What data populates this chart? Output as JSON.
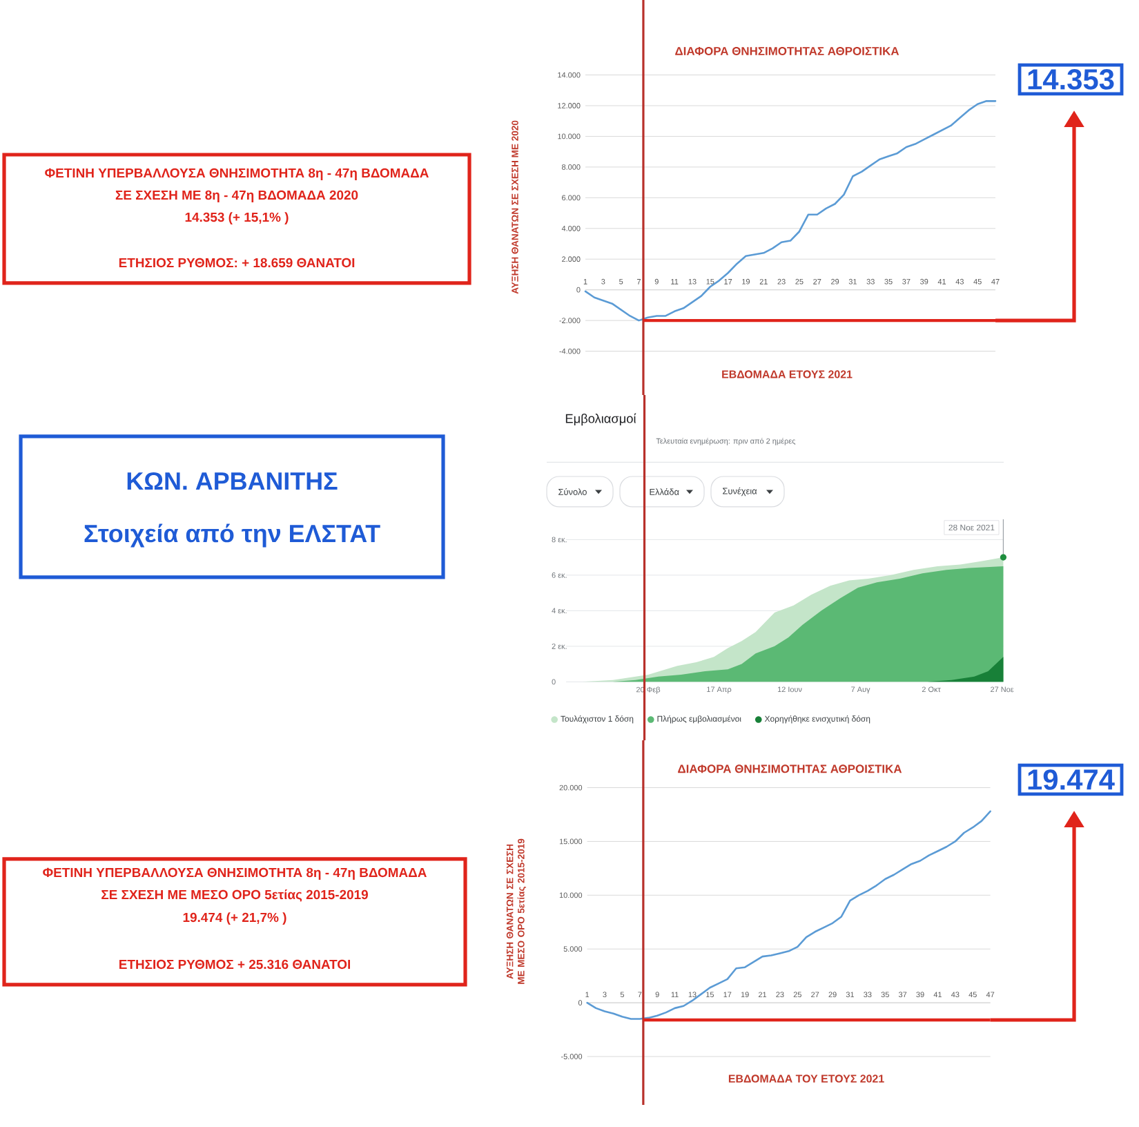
{
  "chart_data": [
    {
      "type": "other",
      "color": "#e0241b",
      "annotations": [
        "ΦΕΤΙΝΗ ΥΠΕΡΒΑΛΛΟΥΣΑ ΘΝΗΣΙΜΟΤΗΤΑ 8η - 47η ΒΔΟΜΑΔΑ",
        "ΣΕ ΣΧΕΣΗ ΜΕ 8η - 47η ΒΔΟΜΑΔΑ 2020",
        "14.353 (+ 15,1% )",
        "ΕΤΗΣΙΟΣ ΡΥΘΜΟΣ: + 18.659 ΘΑΝΑΤΟΙ"
      ]
    },
    {
      "type": "line",
      "title": "ΔΙΑΦΟΡΑ ΘΝΗΣΙΜΟΤΗΤΑΣ ΑΘΡΟΙΣΤΙΚΑ",
      "xlabel": "ΕΒΔΟΜΑΔΑ ΕΤΟΥΣ 2021",
      "ylabel": "ΑΥΞΗΣΗ ΘΑΝΑΤΩΝ ΣΕ ΣΧΕΣΗ ΜΕ 2020",
      "x": [
        1,
        2,
        3,
        4,
        5,
        6,
        7,
        8,
        9,
        10,
        11,
        12,
        13,
        14,
        15,
        16,
        17,
        18,
        19,
        20,
        21,
        22,
        23,
        24,
        25,
        26,
        27,
        28,
        29,
        30,
        31,
        32,
        33,
        34,
        35,
        36,
        37,
        38,
        39,
        40,
        41,
        42,
        43,
        44,
        45,
        46,
        47
      ],
      "values": [
        -100,
        -500,
        -700,
        -900,
        -1300,
        -1700,
        -2000,
        -1800,
        -1700,
        -1700,
        -1400,
        -1200,
        -800,
        -400,
        200,
        600,
        1100,
        1700,
        2200,
        2300,
        2400,
        2700,
        3100,
        3200,
        3800,
        4900,
        4900,
        5300,
        5600,
        6200,
        7400,
        7700,
        8100,
        8500,
        8700,
        8900,
        9300,
        9500,
        9800,
        10100,
        10400,
        10700,
        11200,
        11700,
        12100,
        12300,
        12300
      ],
      "color": "#5b9bd5",
      "xlim": [
        1,
        47
      ],
      "xticks": [
        1,
        3,
        5,
        7,
        9,
        11,
        13,
        15,
        17,
        19,
        21,
        23,
        25,
        27,
        29,
        31,
        33,
        35,
        37,
        39,
        41,
        43,
        45,
        47
      ],
      "ylim": [
        -4000,
        14000
      ],
      "yticks": [
        {
          "value": -4000,
          "label": "-4.000"
        },
        {
          "value": -2000,
          "label": "-2.000"
        },
        0,
        {
          "value": 2000,
          "label": "2.000"
        },
        {
          "value": 4000,
          "label": "4.000"
        },
        {
          "value": 6000,
          "label": "6.000"
        },
        {
          "value": 8000,
          "label": "8.000"
        },
        {
          "value": 10000,
          "label": "10.000"
        },
        {
          "value": 12000,
          "label": "12.000"
        },
        {
          "value": 14000,
          "label": "14.000"
        }
      ],
      "grid": "y",
      "ref_lines": [
        {
          "axis": "x",
          "value": 7.5,
          "color": "#b8312b"
        },
        {
          "axis": "y",
          "value": -2000,
          "color": "#e0241b"
        }
      ],
      "annotations": [
        "14.353"
      ]
    },
    {
      "type": "other",
      "color": "#1f5bd6",
      "annotations": [
        "ΚΩΝ. ΑΡΒΑΝΙΤΗΣ",
        "Στοιχεία από την ΕΛΣΤΑΤ"
      ]
    },
    {
      "type": "area",
      "title": "Εμβολιασμοί",
      "subtitle": "Τελευταία ενημέρωση: πριν από 2 ημέρες",
      "xlim": [
        "2020-12-17",
        "2021-11-28"
      ],
      "xticks": [
        {
          "value": "2021-02-20",
          "label": "20 Φεβ"
        },
        {
          "value": "2021-04-17",
          "label": "17 Απρ"
        },
        {
          "value": "2021-06-12",
          "label": "12 Ιουν"
        },
        {
          "value": "2021-08-07",
          "label": "7 Αυγ"
        },
        {
          "value": "2021-10-02",
          "label": "2 Οκτ"
        },
        {
          "value": "2021-11-27",
          "label": "27 Νοε"
        }
      ],
      "ylim": [
        0,
        8
      ],
      "yticks": [
        0,
        {
          "value": 2,
          "label": "2 εκ."
        },
        {
          "value": 4,
          "label": "4 εκ."
        },
        {
          "value": 6,
          "label": "6 εκ."
        },
        {
          "value": 8,
          "label": "8 εκ."
        }
      ],
      "grid": "y",
      "legend": "bottom",
      "series": [
        {
          "name": "Τουλάχιστον 1 δόση",
          "color": "#c4e5c9",
          "x": [
            "2020-12-30",
            "2021-01-23",
            "2021-02-20",
            "2021-03-15",
            "2021-03-30",
            "2021-04-13",
            "2021-04-24",
            "2021-05-05",
            "2021-05-16",
            "2021-05-31",
            "2021-06-15",
            "2021-06-29",
            "2021-07-14",
            "2021-07-29",
            "2021-08-13",
            "2021-08-31",
            "2021-09-18",
            "2021-10-07",
            "2021-10-25",
            "2021-11-12",
            "2021-11-28"
          ],
          "values": [
            0,
            0.1,
            0.4,
            0.9,
            1.1,
            1.4,
            1.9,
            2.3,
            2.8,
            3.9,
            4.3,
            4.9,
            5.4,
            5.7,
            5.8,
            6.0,
            6.3,
            6.5,
            6.6,
            6.8,
            7.0
          ]
        },
        {
          "name": "Πλήρως εμβολιασμένοι",
          "color": "#5bb974",
          "x": [
            "2020-12-30",
            "2021-01-23",
            "2021-02-10",
            "2021-02-28",
            "2021-03-18",
            "2021-04-06",
            "2021-04-24",
            "2021-05-05",
            "2021-05-16",
            "2021-05-31",
            "2021-06-11",
            "2021-06-22",
            "2021-07-07",
            "2021-07-22",
            "2021-08-05",
            "2021-08-20",
            "2021-09-07",
            "2021-09-25",
            "2021-10-14",
            "2021-11-01",
            "2021-11-28"
          ],
          "values": [
            0,
            0,
            0.1,
            0.3,
            0.4,
            0.6,
            0.7,
            1.0,
            1.6,
            2.0,
            2.5,
            3.2,
            4.0,
            4.7,
            5.3,
            5.6,
            5.8,
            6.1,
            6.3,
            6.4,
            6.5
          ]
        },
        {
          "name": "Χορηγήθηκε ενισχυτική δόση",
          "color": "#188038",
          "x": [
            "2021-09-29",
            "2021-10-18",
            "2021-11-05",
            "2021-11-16",
            "2021-11-28"
          ],
          "values": [
            0,
            0.1,
            0.3,
            0.6,
            1.4
          ]
        }
      ],
      "ref_lines": [
        {
          "axis": "x",
          "value": "2021-02-17",
          "color": "#b8312b"
        }
      ],
      "annotations": [
        "Σύνολο",
        "Ελλάδα",
        "Συνέχεια",
        {
          "text": "28 Νοε 2021",
          "x": "2021-11-28",
          "y": 7.0
        }
      ]
    },
    {
      "type": "other",
      "color": "#e0241b",
      "annotations": [
        "ΦΕΤΙΝΗ ΥΠΕΡΒΑΛΛΟΥΣΑ ΘΝΗΣΙΜΟΤΗΤΑ 8η - 47η ΒΔΟΜΑΔΑ",
        "ΣΕ ΣΧΕΣΗ ΜΕ ΜΕΣΟ ΟΡΟ 5ετίας 2015-2019",
        "19.474 (+ 21,7% )",
        "ΕΤΗΣΙΟΣ ΡΥΘΜΟΣ + 25.316 ΘΑΝΑΤΟΙ"
      ]
    },
    {
      "type": "line",
      "title": "ΔΙΑΦΟΡΑ ΘΝΗΣΙΜΟΤΗΤΑΣ ΑΘΡΟΙΣΤΙΚΑ",
      "xlabel": "ΕΒΔΟΜΑΔΑ ΤΟΥ ΕΤΟΥΣ 2021",
      "ylabel": "ΑΥΞΗΣΗ ΘΑΝΑΤΩΝ ΣΕ ΣΧΕΣΗ ΜΕ ΜΕΣΟ ΟΡΟ 5ετίας 2015-2019",
      "x": [
        1,
        2,
        3,
        4,
        5,
        6,
        7,
        8,
        9,
        10,
        11,
        12,
        13,
        14,
        15,
        16,
        17,
        18,
        19,
        20,
        21,
        22,
        23,
        24,
        25,
        26,
        27,
        28,
        29,
        30,
        31,
        32,
        33,
        34,
        35,
        36,
        37,
        38,
        39,
        40,
        41,
        42,
        43,
        44,
        45,
        46,
        47
      ],
      "values": [
        0,
        -500,
        -800,
        -1000,
        -1300,
        -1500,
        -1500,
        -1400,
        -1200,
        -900,
        -500,
        -300,
        200,
        800,
        1400,
        1800,
        2200,
        3200,
        3300,
        3800,
        4300,
        4400,
        4600,
        4800,
        5200,
        6100,
        6600,
        7000,
        7400,
        8000,
        9500,
        10000,
        10400,
        10900,
        11500,
        11900,
        12400,
        12900,
        13200,
        13700,
        14100,
        14500,
        15000,
        15800,
        16300,
        16900,
        17800
      ],
      "color": "#5b9bd5",
      "xlim": [
        1,
        47
      ],
      "xticks": [
        1,
        3,
        5,
        7,
        9,
        11,
        13,
        15,
        17,
        19,
        21,
        23,
        25,
        27,
        29,
        31,
        33,
        35,
        37,
        39,
        41,
        43,
        45,
        47
      ],
      "ylim": [
        -5000,
        20000
      ],
      "yticks": [
        {
          "value": -5000,
          "label": "-5.000"
        },
        0,
        {
          "value": 5000,
          "label": "5.000"
        },
        {
          "value": 10000,
          "label": "10.000"
        },
        {
          "value": 15000,
          "label": "15.000"
        },
        {
          "value": 20000,
          "label": "20.000"
        }
      ],
      "grid": "y",
      "ref_lines": [
        {
          "axis": "x",
          "value": 7.4,
          "color": "#b8312b"
        },
        {
          "axis": "y",
          "value": -1600,
          "color": "#e0241b"
        }
      ],
      "annotations": [
        "19.474"
      ]
    }
  ]
}
